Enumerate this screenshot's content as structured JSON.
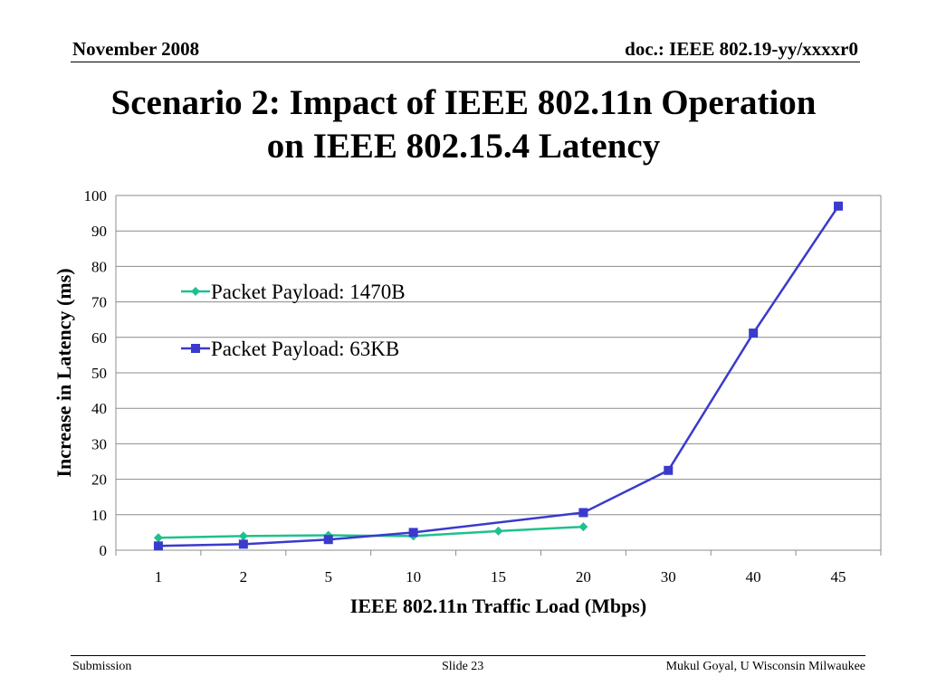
{
  "header": {
    "left": "November 2008",
    "right": "doc.: IEEE 802.19-yy/xxxxr0"
  },
  "slide": {
    "title_line1": "Scenario 2: Impact of IEEE 802.11n Operation",
    "title_line2": "on IEEE 802.15.4 Latency"
  },
  "footer": {
    "left": "Submission",
    "center": "Slide 23",
    "right": "Mukul Goyal, U Wisconsin Milwaukee"
  },
  "chart_data": {
    "type": "line",
    "categories": [
      "1",
      "2",
      "5",
      "10",
      "15",
      "20",
      "30",
      "40",
      "45"
    ],
    "xlabel": "IEEE 802.11n Traffic Load (Mbps)",
    "ylabel": "Increase in Latency (ms)",
    "ylim": [
      0,
      100
    ],
    "yticks": [
      0,
      10,
      20,
      30,
      40,
      50,
      60,
      70,
      80,
      90,
      100
    ],
    "grid": true,
    "legend_position": "upper-left",
    "series": [
      {
        "name": "Packet Payload: 1470B",
        "color": "#1fc08f",
        "marker": "diamond",
        "values": [
          3.5,
          4.0,
          4.2,
          4.0,
          5.4,
          6.6,
          null,
          null,
          null
        ]
      },
      {
        "name": "Packet Payload: 63KB",
        "color": "#3a3acd",
        "marker": "square",
        "values": [
          1.2,
          1.7,
          3.0,
          5.0,
          null,
          10.6,
          22.5,
          61.2,
          97.0
        ]
      }
    ]
  }
}
